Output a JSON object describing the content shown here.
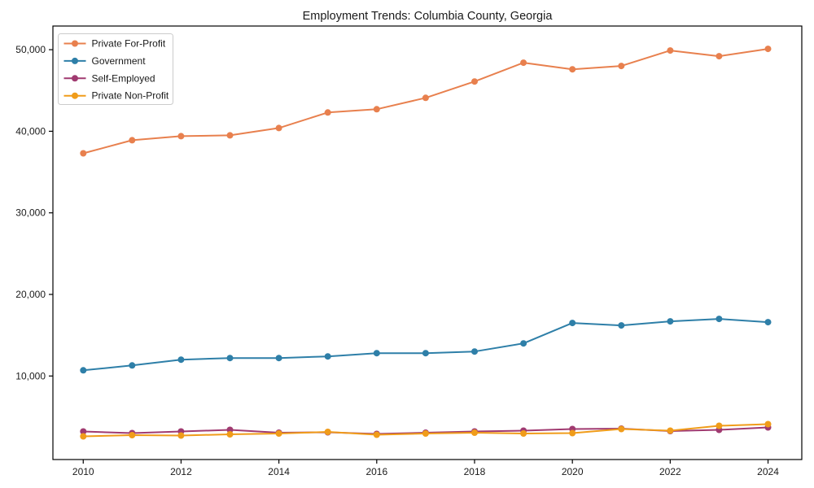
{
  "figure": {
    "background": "#ffffff",
    "border_color": "#000000"
  },
  "chart_data": {
    "type": "line",
    "title": "Employment Trends: Columbia County, Georgia",
    "xlabel": "",
    "ylabel": "",
    "x": [
      2010,
      2011,
      2012,
      2013,
      2014,
      2015,
      2016,
      2017,
      2018,
      2019,
      2020,
      2021,
      2022,
      2023,
      2024
    ],
    "series": [
      {
        "name": "Private For-Profit",
        "color": "#e8804e",
        "values": [
          37300,
          38900,
          39400,
          39500,
          40400,
          42300,
          42700,
          44100,
          46100,
          48400,
          47600,
          48000,
          49900,
          49200,
          50100
        ]
      },
      {
        "name": "Government",
        "color": "#2e7fa8",
        "values": [
          10700,
          11300,
          12000,
          12200,
          12200,
          12400,
          12800,
          12800,
          13000,
          14000,
          16500,
          16200,
          16700,
          17000,
          16600
        ]
      },
      {
        "name": "Self-Employed",
        "color": "#a03a70",
        "values": [
          3200,
          3000,
          3200,
          3400,
          3050,
          3100,
          2900,
          3050,
          3200,
          3300,
          3500,
          3550,
          3250,
          3400,
          3700
        ]
      },
      {
        "name": "Private Non-Profit",
        "color": "#f09c1a",
        "values": [
          2600,
          2750,
          2700,
          2850,
          2950,
          3150,
          2800,
          2950,
          3050,
          2950,
          3000,
          3500,
          3300,
          3900,
          4100
        ]
      }
    ],
    "x_ticks": [
      2010,
      2012,
      2014,
      2016,
      2018,
      2020,
      2022,
      2024
    ],
    "x_tick_labels": [
      "2010",
      "2012",
      "2014",
      "2016",
      "2018",
      "2020",
      "2022",
      "2024"
    ],
    "y_ticks": [
      10000,
      20000,
      30000,
      40000,
      50000
    ],
    "y_tick_labels": [
      "10,000",
      "20,000",
      "30,000",
      "40,000",
      "50,000"
    ],
    "xlim": [
      2009.38,
      2024.69
    ],
    "ylim": [
      -240,
      52900
    ],
    "grid": false,
    "legend_position": "upper-left",
    "line_width": 2,
    "marker": "circle",
    "marker_radius": 4
  }
}
